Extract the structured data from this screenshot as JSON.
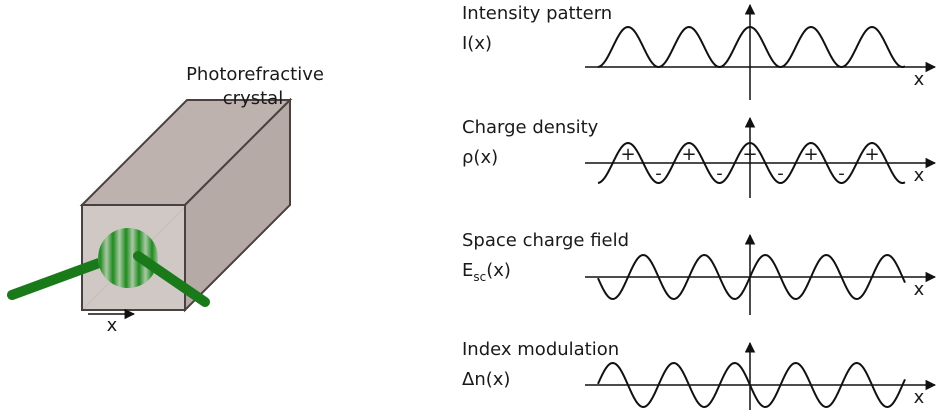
{
  "crystal": {
    "label": [
      "Photorefractive",
      "crystal"
    ],
    "axis_label": "x"
  },
  "panels": [
    {
      "title": "Intensity pattern",
      "symbol": "I(x)",
      "axis_label": "x"
    },
    {
      "title": "Charge density",
      "symbol": "ρ(x)",
      "axis_label": "x",
      "signs": {
        "plus": "+",
        "minus": "-"
      }
    },
    {
      "title": "Space charge field",
      "symbol": {
        "base": "E",
        "subscript": "sc",
        "rest": "(x)"
      },
      "axis_label": "x"
    },
    {
      "title": "Index modulation",
      "symbol": "Δn(x)",
      "axis_label": "x"
    }
  ]
}
